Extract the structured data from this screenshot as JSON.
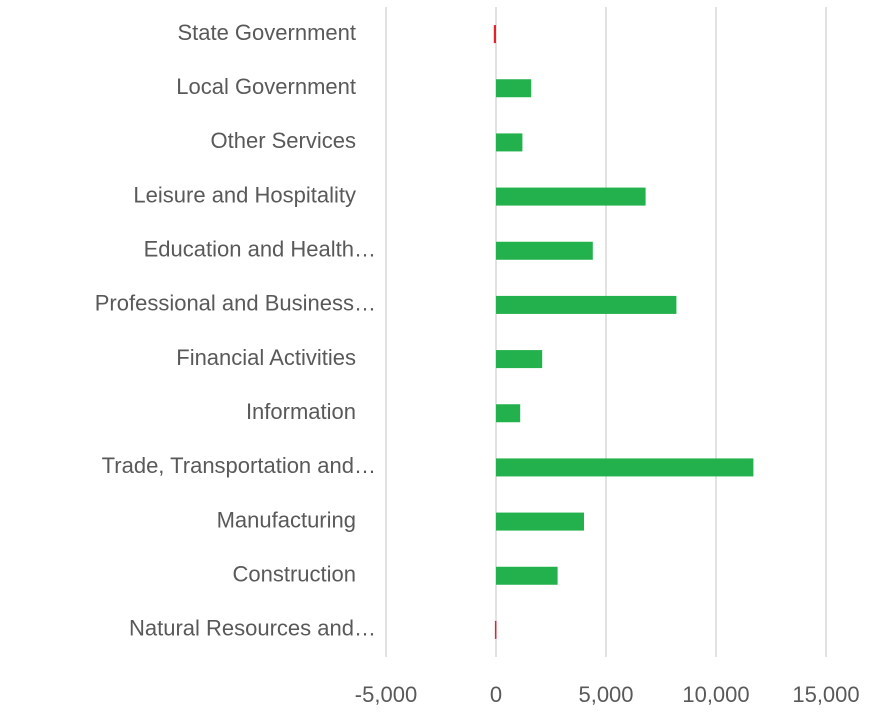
{
  "chart_data": {
    "type": "bar",
    "orientation": "horizontal",
    "categories": [
      "State Government",
      "Local Government",
      "Other Services",
      "Leisure and Hospitality",
      "Education and Health…",
      "Professional and Business…",
      "Financial Activities",
      "Information",
      "Trade, Transportation and…",
      "Manufacturing",
      "Construction",
      "Natural Resources and…"
    ],
    "values": [
      -100,
      1600,
      1200,
      6800,
      4400,
      8200,
      2100,
      1100,
      11700,
      4000,
      2800,
      -50
    ],
    "color": "#22b14c",
    "negative_color": "#e8202a",
    "xlim": [
      -5000,
      15000
    ],
    "xticks": [
      {
        "value": -5000,
        "label": "-5,000"
      },
      0,
      {
        "value": 5000,
        "label": "5,000"
      },
      {
        "value": 10000,
        "label": "10,000"
      },
      {
        "value": 15000,
        "label": "15,000"
      }
    ],
    "grid": true
  }
}
